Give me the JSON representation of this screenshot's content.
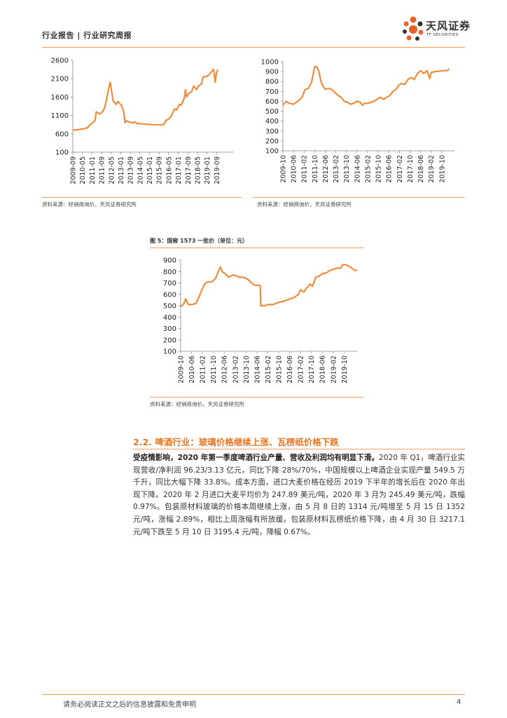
{
  "header": {
    "title": "行业报告 | 行业研究周报",
    "logo_cn": "天风证券",
    "logo_en": "TF SECURITIES"
  },
  "colors": {
    "accent": "#f08c3c",
    "line": "#f0a060",
    "section": "#e87722"
  },
  "chart_data": [
    {
      "type": "line",
      "title": "",
      "ylim": [
        100,
        2600
      ],
      "yticks": [
        100,
        600,
        1100,
        1600,
        2100,
        2600
      ],
      "xticks": [
        "2009-09",
        "2010-05",
        "2011-01",
        "2011-09",
        "2012-05",
        "2013-01",
        "2013-09",
        "2014-05",
        "2015-01",
        "2015-09",
        "2016-05",
        "2017-01",
        "2017-09",
        "2018-05",
        "2019-01",
        "2019-09"
      ],
      "x_end_index": 16.8,
      "points": [
        [
          0,
          700
        ],
        [
          0.5,
          710
        ],
        [
          1,
          730
        ],
        [
          1.5,
          760
        ],
        [
          1.9,
          870
        ],
        [
          2.3,
          950
        ],
        [
          2.45,
          1200
        ],
        [
          2.6,
          1170
        ],
        [
          2.8,
          1140
        ],
        [
          3.1,
          1200
        ],
        [
          3.3,
          1300
        ],
        [
          3.5,
          1500
        ],
        [
          3.7,
          1800
        ],
        [
          3.9,
          2000
        ],
        [
          4.05,
          1750
        ],
        [
          4.2,
          1500
        ],
        [
          4.5,
          1400
        ],
        [
          4.7,
          1480
        ],
        [
          4.9,
          1420
        ],
        [
          5.1,
          1360
        ],
        [
          5.3,
          1200
        ],
        [
          5.45,
          900
        ],
        [
          5.6,
          950
        ],
        [
          5.9,
          920
        ],
        [
          6.2,
          900
        ],
        [
          6.5,
          920
        ],
        [
          6.7,
          880
        ],
        [
          7.2,
          870
        ],
        [
          7.8,
          860
        ],
        [
          8.3,
          840
        ],
        [
          8.8,
          850
        ],
        [
          9.2,
          840
        ],
        [
          9.5,
          860
        ],
        [
          9.7,
          960
        ],
        [
          10.0,
          1000
        ],
        [
          10.3,
          1100
        ],
        [
          10.6,
          1280
        ],
        [
          10.85,
          1250
        ],
        [
          11.1,
          1400
        ],
        [
          11.3,
          1380
        ],
        [
          11.6,
          1550
        ],
        [
          11.75,
          1800
        ],
        [
          11.85,
          1600
        ],
        [
          12.1,
          1700
        ],
        [
          12.4,
          1750
        ],
        [
          12.6,
          1900
        ],
        [
          12.9,
          1800
        ],
        [
          13.1,
          1900
        ],
        [
          13.4,
          1950
        ],
        [
          13.6,
          2150
        ],
        [
          13.9,
          2160
        ],
        [
          14.2,
          2200
        ],
        [
          14.5,
          2300
        ],
        [
          14.7,
          2350
        ],
        [
          14.85,
          2000
        ],
        [
          14.95,
          2200
        ],
        [
          15.1,
          2350
        ]
      ]
    },
    {
      "type": "line",
      "title": "",
      "ylim": [
        100,
        1000
      ],
      "yticks": [
        100,
        200,
        300,
        400,
        500,
        600,
        700,
        800,
        900,
        1000
      ],
      "xticks": [
        "2009-10",
        "2010-06",
        "2011-02",
        "2011-10",
        "2012-06",
        "2013-02",
        "2013-10",
        "2014-06",
        "2015-02",
        "2015-10",
        "2016-06",
        "2017-02",
        "2017-10",
        "2018-06",
        "2019-02",
        "2019-10"
      ],
      "x_end_index": 16.2,
      "points": [
        [
          0,
          560
        ],
        [
          0.3,
          600
        ],
        [
          0.6,
          580
        ],
        [
          1,
          570
        ],
        [
          1.4,
          600
        ],
        [
          1.8,
          640
        ],
        [
          2.1,
          720
        ],
        [
          2.4,
          730
        ],
        [
          2.7,
          790
        ],
        [
          3.0,
          950
        ],
        [
          3.2,
          950
        ],
        [
          3.4,
          900
        ],
        [
          3.6,
          800
        ],
        [
          3.75,
          760
        ],
        [
          4.0,
          720
        ],
        [
          4.3,
          730
        ],
        [
          4.6,
          720
        ],
        [
          4.9,
          690
        ],
        [
          5.2,
          660
        ],
        [
          5.5,
          640
        ],
        [
          5.8,
          600
        ],
        [
          6.1,
          590
        ],
        [
          6.4,
          570
        ],
        [
          6.7,
          580
        ],
        [
          7.0,
          600
        ],
        [
          7.3,
          590
        ],
        [
          7.5,
          560
        ],
        [
          7.7,
          580
        ],
        [
          8.0,
          580
        ],
        [
          8.3,
          590
        ],
        [
          8.6,
          600
        ],
        [
          8.9,
          620
        ],
        [
          9.2,
          640
        ],
        [
          9.5,
          620
        ],
        [
          9.8,
          640
        ],
        [
          10.1,
          660
        ],
        [
          10.4,
          700
        ],
        [
          10.7,
          720
        ],
        [
          10.9,
          760
        ],
        [
          11.2,
          780
        ],
        [
          11.5,
          770
        ],
        [
          11.8,
          820
        ],
        [
          12.1,
          840
        ],
        [
          12.4,
          820
        ],
        [
          12.7,
          880
        ],
        [
          13.0,
          910
        ],
        [
          13.3,
          880
        ],
        [
          13.6,
          910
        ],
        [
          13.85,
          830
        ],
        [
          14.0,
          890
        ],
        [
          14.4,
          900
        ],
        [
          14.8,
          905
        ],
        [
          15.2,
          910
        ],
        [
          15.5,
          910
        ],
        [
          15.7,
          930
        ]
      ]
    },
    {
      "type": "line",
      "title": "图 5：国窖 1573 一批价（单位：元）",
      "ylim": [
        100,
        900
      ],
      "yticks": [
        100,
        200,
        300,
        400,
        500,
        600,
        700,
        800,
        900
      ],
      "xticks": [
        "2009-10",
        "2010-06",
        "2011-02",
        "2011-10",
        "2012-06",
        "2013-02",
        "2013-10",
        "2014-06",
        "2015-02",
        "2015-10",
        "2016-06",
        "2017-02",
        "2017-10",
        "2018-06",
        "2019-02",
        "2019-10"
      ],
      "x_end_index": 16.2,
      "points": [
        [
          0,
          490
        ],
        [
          0.3,
          520
        ],
        [
          0.45,
          560
        ],
        [
          0.7,
          510
        ],
        [
          1.0,
          510
        ],
        [
          1.4,
          520
        ],
        [
          1.7,
          580
        ],
        [
          2.0,
          650
        ],
        [
          2.15,
          680
        ],
        [
          2.3,
          700
        ],
        [
          2.5,
          710
        ],
        [
          2.9,
          710
        ],
        [
          3.2,
          740
        ],
        [
          3.5,
          810
        ],
        [
          3.65,
          840
        ],
        [
          3.8,
          800
        ],
        [
          4.1,
          780
        ],
        [
          4.4,
          750
        ],
        [
          4.6,
          760
        ],
        [
          4.8,
          770
        ],
        [
          5.2,
          760
        ],
        [
          5.4,
          750
        ],
        [
          5.8,
          750
        ],
        [
          6.2,
          730
        ],
        [
          6.5,
          700
        ],
        [
          6.8,
          680
        ],
        [
          7.3,
          680
        ],
        [
          7.35,
          500
        ],
        [
          7.7,
          500
        ],
        [
          8.0,
          510
        ],
        [
          8.5,
          510
        ],
        [
          9.0,
          530
        ],
        [
          9.5,
          540
        ],
        [
          10.0,
          560
        ],
        [
          10.4,
          570
        ],
        [
          10.8,
          600
        ],
        [
          11.0,
          640
        ],
        [
          11.3,
          620
        ],
        [
          11.6,
          660
        ],
        [
          11.9,
          690
        ],
        [
          12.1,
          670
        ],
        [
          12.4,
          750
        ],
        [
          12.7,
          760
        ],
        [
          13.0,
          780
        ],
        [
          13.4,
          790
        ],
        [
          13.7,
          810
        ],
        [
          14.0,
          820
        ],
        [
          14.4,
          830
        ],
        [
          14.7,
          830
        ],
        [
          14.85,
          860
        ],
        [
          15.1,
          860
        ],
        [
          15.4,
          850
        ],
        [
          15.7,
          830
        ],
        [
          16.0,
          810
        ],
        [
          16.2,
          810
        ]
      ]
    }
  ],
  "sources": {
    "left": "资料来源：经销商询价，天风证券研究所",
    "right": "资料来源：经销商询价，天风证券研究所",
    "center": "资料来源：经销商询价，天风证券研究所"
  },
  "section": {
    "title": "2.2. 啤酒行业：玻璃价格继续上涨、瓦楞纸价格下跌",
    "lead": "受疫情影响，2020 年第一季度啤酒行业产量、营收及利润均有明显下滑。",
    "body": "2020 年 Q1，啤酒行业实现营收/净利润 96.23/3.13 亿元，同比下降 28%/70%，中国规模以上啤酒企业实现产量 549.5 万千升，同比大幅下降 33.8%。成本方面，进口大麦价格在经历 2019 下半年的增长后在 2020 年出现下降。2020 年 2 月进口大麦平均价为 247.89 美元/吨，2020 年 3 月为 245.49 美元/吨，跌幅 0.97%。包装原材料玻璃的价格本周继续上涨，由 5 月 8 日的 1314 元/吨增至 5 月 15 日 1352 元/吨，涨幅 2.89%，相比上周涨幅有所放缓。包装原材料瓦楞纸价格下降，由 4 月 30 日 3217.1 元/吨下跌至 5 月 10 日 3195.4 元/吨，降幅 0.67%。"
  },
  "footer": {
    "disclaimer": "请务必阅读正文之后的信息披露和免责申明",
    "page": "4"
  }
}
